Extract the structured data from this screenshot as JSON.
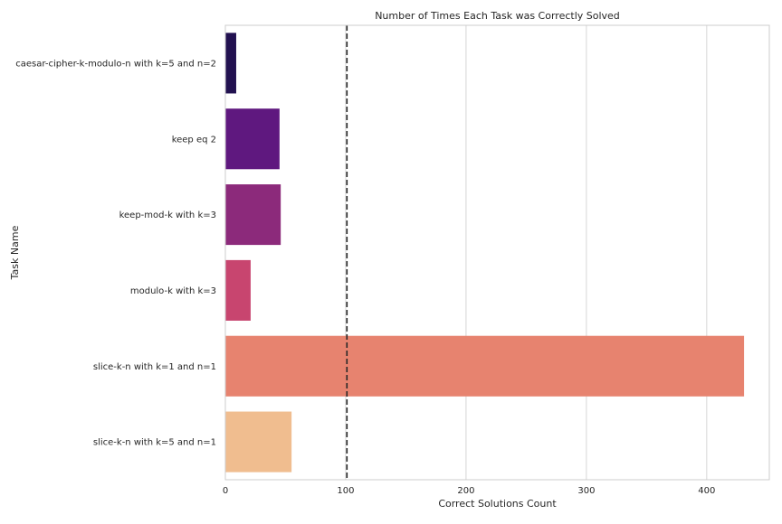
{
  "chart_data": {
    "type": "bar",
    "orientation": "horizontal",
    "title": "Number of Times Each Task was Correctly Solved",
    "xlabel": "Correct Solutions Count",
    "ylabel": "Task Name",
    "categories": [
      "caesar-cipher-k-modulo-n with k=5 and n=2",
      "keep eq 2",
      "keep-mod-k with k=3",
      "modulo-k with k=3",
      "slice-k-n with k=1 and n=1",
      "slice-k-n with k=5 and n=1"
    ],
    "values": [
      9,
      45,
      46,
      21,
      431,
      55
    ],
    "colors": [
      "#221150",
      "#5f187f",
      "#8c2a7b",
      "#c8456f",
      "#e7836f",
      "#f0bd8f"
    ],
    "xlim": [
      0,
      452
    ],
    "xticks": [
      0,
      100,
      200,
      300,
      400
    ],
    "reference_line": {
      "x": 101,
      "style": "dashed",
      "color": "#262626"
    },
    "grid": "vertical",
    "style": "seaborn-whitegrid"
  }
}
